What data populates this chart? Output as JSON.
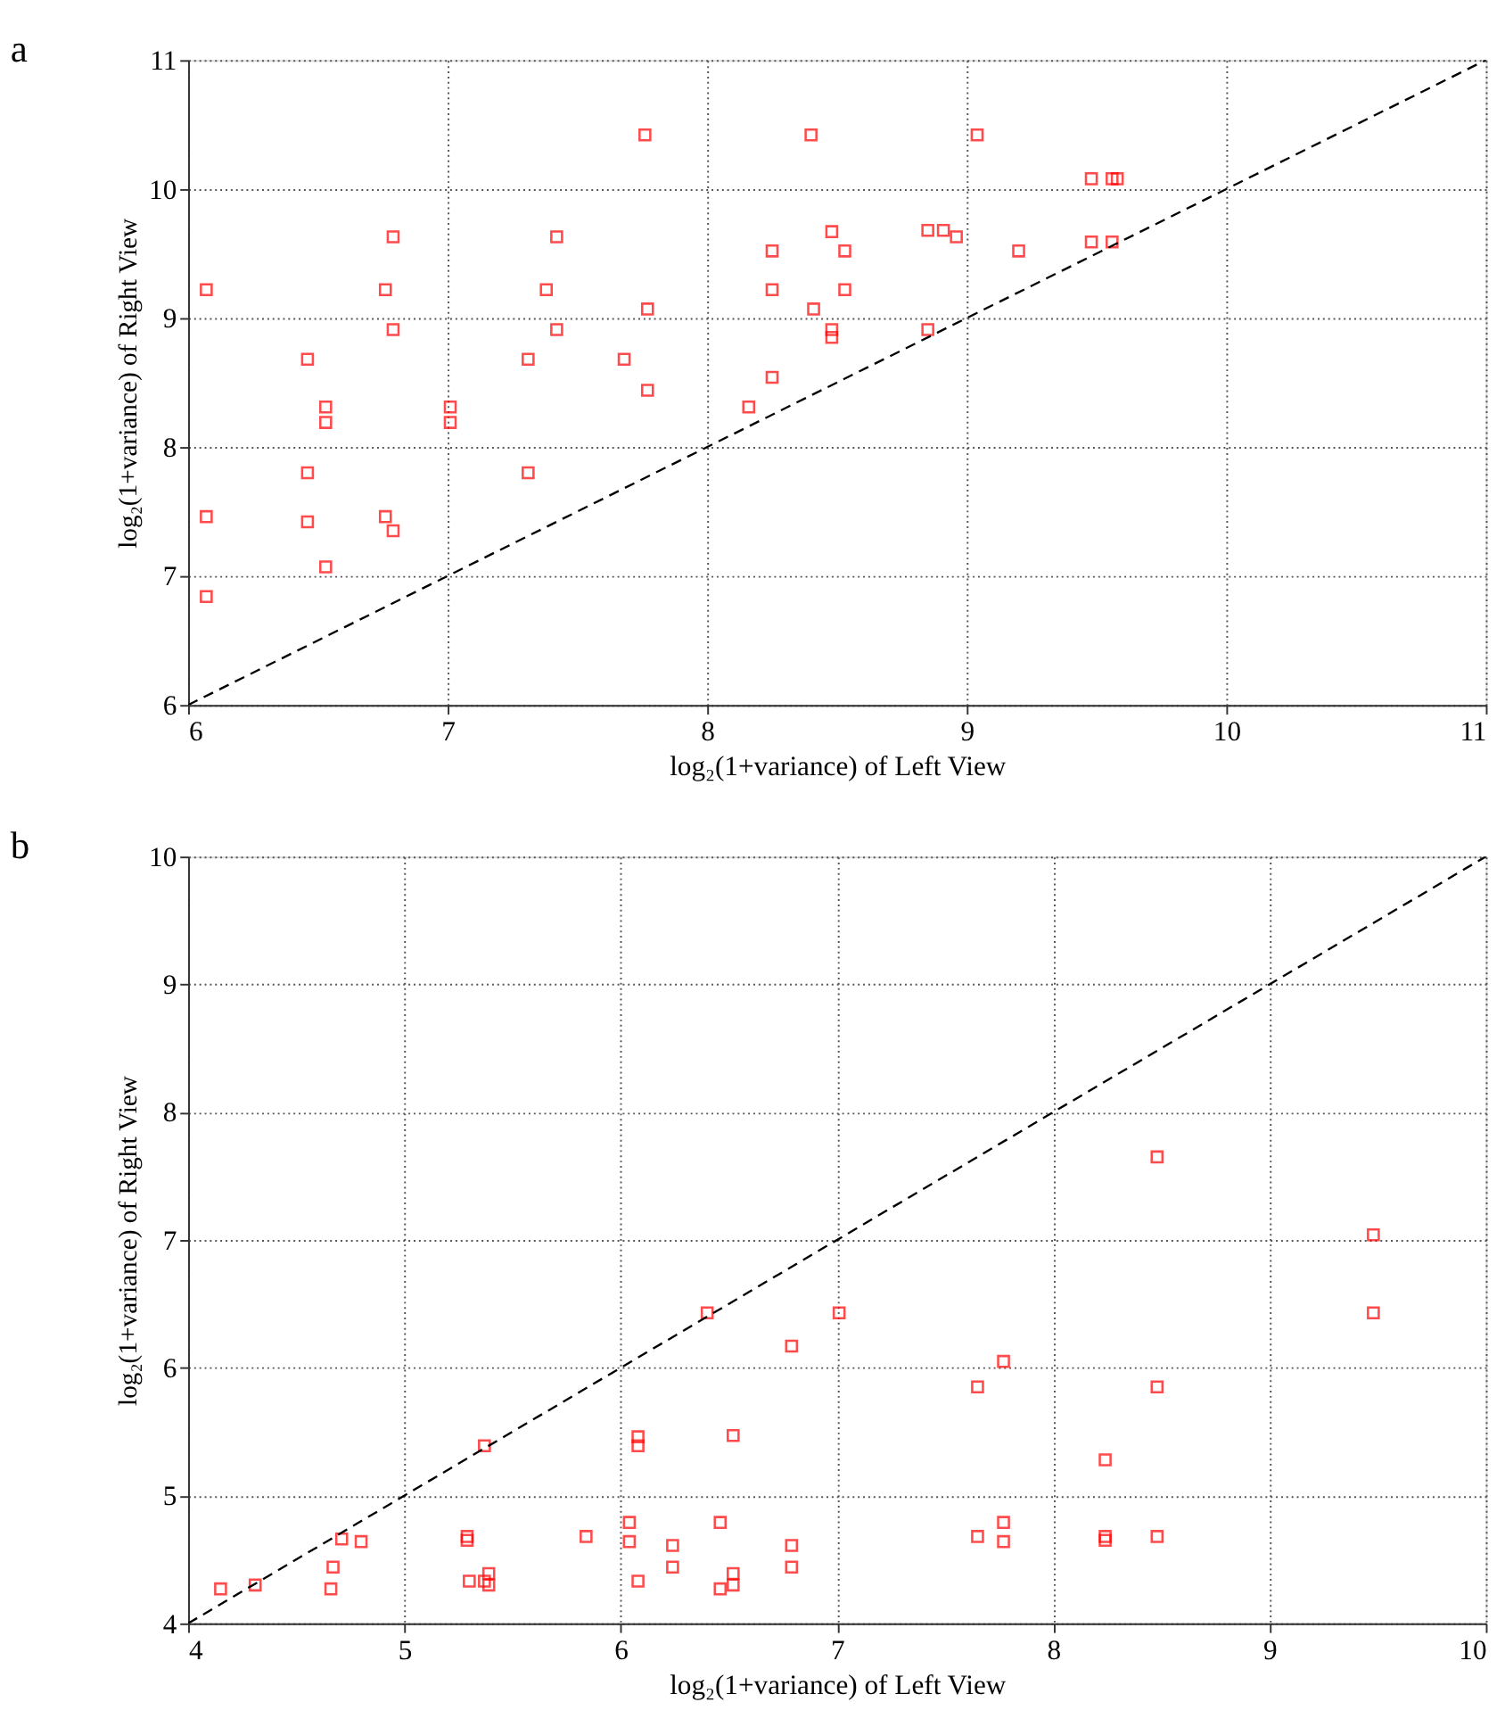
{
  "chart_data": [
    {
      "type": "scatter",
      "title": "a",
      "xlabel": "log₂(1+variance) of Left View",
      "ylabel": "log₂(1+variance) of Right View",
      "xlim": [
        6,
        11
      ],
      "ylim": [
        6,
        11
      ],
      "xticks": [
        6,
        7,
        8,
        9,
        10,
        11
      ],
      "yticks": [
        6,
        7,
        8,
        9,
        10,
        11
      ],
      "grid": true,
      "series": [
        {
          "type": "scatter",
          "marker": "square",
          "color": "#ff0000",
          "x": [
            6.07,
            6.07,
            6.07,
            6.46,
            6.53,
            6.53,
            6.46,
            6.46,
            6.53,
            6.79,
            6.76,
            6.79,
            6.76,
            6.79,
            7.01,
            7.01,
            7.31,
            7.31,
            7.42,
            7.38,
            7.42,
            7.68,
            7.77,
            7.77,
            8.16,
            8.25,
            8.25,
            8.25,
            8.41,
            8.48,
            8.53,
            8.53,
            8.48,
            8.48,
            8.85,
            8.91,
            8.96,
            8.85,
            9.2,
            9.48,
            9.48,
            9.56,
            9.58,
            9.56,
            7.76,
            8.4,
            9.04
          ],
          "values": [
            9.22,
            7.46,
            6.84,
            8.68,
            8.31,
            8.19,
            7.8,
            7.42,
            7.07,
            9.63,
            9.22,
            8.91,
            7.46,
            7.35,
            8.31,
            8.19,
            8.68,
            7.8,
            9.63,
            9.22,
            8.91,
            8.68,
            9.07,
            8.44,
            8.31,
            8.54,
            9.22,
            9.52,
            9.07,
            9.67,
            9.52,
            9.22,
            8.91,
            8.85,
            9.68,
            9.68,
            9.63,
            8.91,
            9.52,
            10.08,
            9.59,
            10.08,
            10.08,
            9.59,
            10.42,
            10.42,
            10.42
          ]
        },
        {
          "type": "line",
          "marker": "none",
          "color": "#000000",
          "line_style": "dashed",
          "x": [
            6,
            11
          ],
          "values": [
            6,
            11
          ]
        }
      ]
    },
    {
      "type": "scatter",
      "title": "b",
      "xlabel": "log₂(1+variance) of Left View",
      "ylabel": "log₂(1+variance) of Right View",
      "xlim": [
        4,
        10
      ],
      "ylim": [
        4,
        10
      ],
      "xticks": [
        4,
        5,
        6,
        7,
        8,
        9,
        10
      ],
      "yticks": [
        4,
        5,
        6,
        7,
        8,
        9,
        10
      ],
      "grid": true,
      "series": [
        {
          "type": "scatter",
          "marker": "square",
          "color": "#ff0000",
          "x": [
            4.15,
            4.31,
            4.66,
            4.67,
            4.71,
            4.8,
            5.29,
            5.29,
            5.3,
            5.37,
            5.39,
            5.39,
            5.37,
            5.84,
            6.04,
            6.04,
            6.08,
            6.08,
            6.08,
            6.24,
            6.24,
            6.4,
            6.46,
            6.46,
            6.52,
            6.52,
            6.52,
            6.79,
            6.79,
            6.79,
            7.01,
            7.65,
            7.77,
            7.65,
            7.77,
            7.77,
            8.24,
            8.24,
            8.24,
            8.48,
            8.48,
            8.48,
            9.48,
            9.48
          ],
          "values": [
            4.27,
            4.3,
            4.27,
            4.44,
            4.66,
            4.64,
            4.68,
            4.65,
            4.33,
            4.33,
            4.39,
            4.3,
            5.39,
            4.68,
            4.79,
            4.64,
            4.33,
            5.46,
            5.39,
            4.61,
            4.44,
            6.43,
            4.79,
            4.27,
            5.47,
            4.39,
            4.3,
            6.17,
            4.61,
            4.44,
            6.43,
            5.85,
            6.05,
            4.68,
            4.79,
            4.64,
            5.28,
            4.68,
            4.65,
            7.65,
            5.85,
            4.68,
            7.04,
            6.43
          ]
        },
        {
          "type": "line",
          "marker": "none",
          "color": "#000000",
          "line_style": "dashed",
          "x": [
            4,
            10
          ],
          "values": [
            4,
            10
          ]
        }
      ]
    }
  ]
}
